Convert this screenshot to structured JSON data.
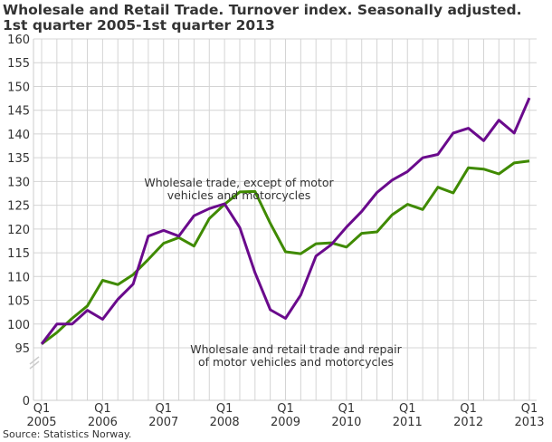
{
  "chart_data": {
    "type": "line",
    "title": "Wholesale and Retail Trade. Turnover index. Seasonally adjusted.",
    "subtitle": "1st quarter 2005-1st quarter 2013",
    "source": "Source: Statistics Norway.",
    "xlabel": "",
    "ylabel": "",
    "ylim": [
      95,
      160
    ],
    "y_break": true,
    "yticks": [
      "0",
      "95",
      "100",
      "105",
      "110",
      "115",
      "120",
      "125",
      "130",
      "135",
      "140",
      "145",
      "150",
      "155",
      "160"
    ],
    "xtick_labels": [
      {
        "q": "Q1",
        "year": "2005"
      },
      {
        "q": "Q1",
        "year": "2006"
      },
      {
        "q": "Q1",
        "year": "2007"
      },
      {
        "q": "Q1",
        "year": "2008"
      },
      {
        "q": "Q1",
        "year": "2009"
      },
      {
        "q": "Q1",
        "year": "2010"
      },
      {
        "q": "Q1",
        "year": "2011"
      },
      {
        "q": "Q1",
        "year": "2012"
      },
      {
        "q": "Q1",
        "year": "2013"
      }
    ],
    "grid": true,
    "x_start": "2005Q1",
    "x_end": "2013Q1",
    "series": [
      {
        "name": "Wholesale and retail trade and repair of motor vehicles and motorcycles",
        "color": "#6a0a8c",
        "values": [
          95.8,
          100,
          100,
          102.9,
          101,
          105.2,
          108.4,
          118.5,
          119.7,
          118.5,
          122.8,
          124.3,
          125.3,
          120.3,
          110.8,
          103,
          101.2,
          106.1,
          114.3,
          116.7,
          120.4,
          123.7,
          127.7,
          130.3,
          132.1,
          135,
          135.7,
          140.2,
          141.2,
          138.6,
          142.9,
          140.2,
          147.6
        ]
      },
      {
        "name": "Wholesale trade, except of motor vehicles and motorcycles",
        "color": "#3f8a00",
        "values": [
          95.8,
          98.2,
          101.2,
          103.8,
          109.2,
          108.3,
          110.4,
          113.6,
          117,
          118.2,
          116.4,
          122.2,
          125.2,
          127.8,
          127.9,
          121.2,
          115.2,
          114.8,
          116.9,
          117.1,
          116.2,
          119.1,
          119.4,
          123,
          125.2,
          124.1,
          128.8,
          127.6,
          132.9,
          132.6,
          131.6,
          133.9,
          134.3
        ]
      }
    ],
    "annotations": [
      {
        "lines": [
          "Wholesale trade, except of motor",
          "vehicles and motorcycles"
        ]
      },
      {
        "lines": [
          "Wholesale and retail trade and repair",
          "of motor vehicles and motorcycles"
        ]
      }
    ]
  }
}
